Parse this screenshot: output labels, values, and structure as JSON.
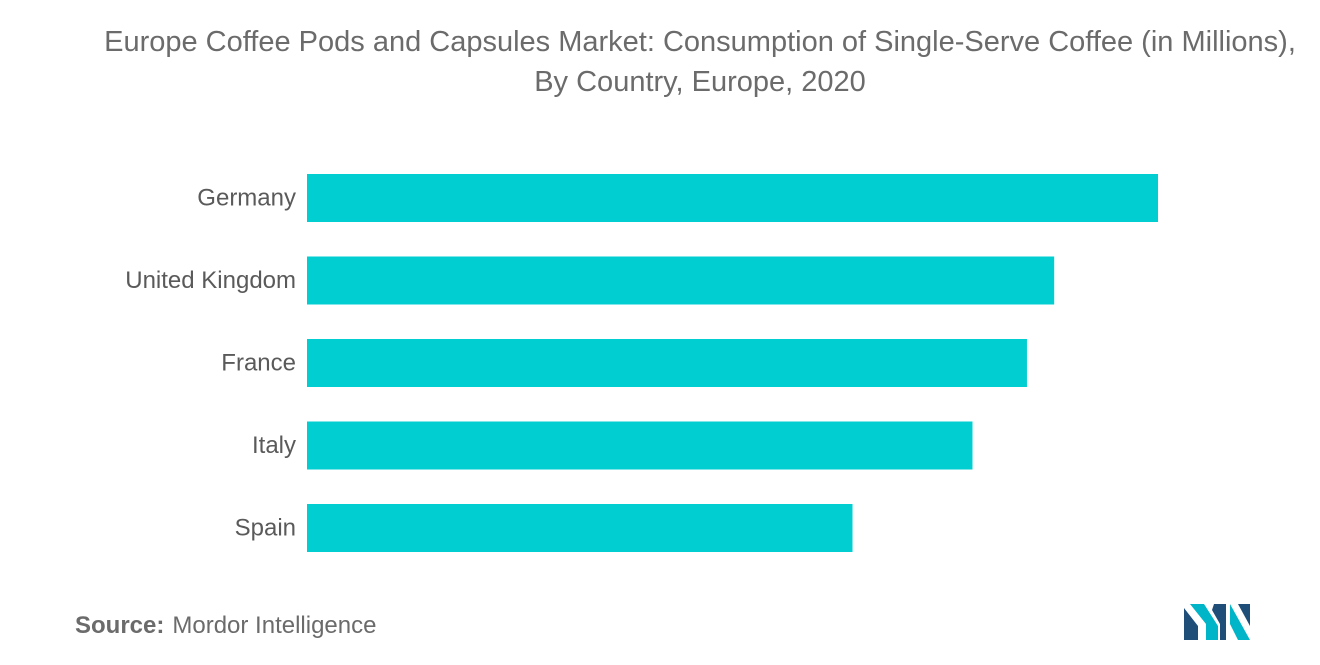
{
  "title": "Europe Coffee Pods and Capsules Market: Consumption of Single-Serve Coffee (in Millions), By Country, Europe, 2020",
  "source": {
    "label": "Source:",
    "text": "Mordor Intelligence"
  },
  "colors": {
    "bar": "#00CED1",
    "logo_dark": "#1f4e79",
    "logo_light": "#00b5c8"
  },
  "chart_data": {
    "type": "bar",
    "orientation": "horizontal",
    "categories": [
      "Germany",
      "United Kingdom",
      "France",
      "Italy",
      "Spain"
    ],
    "values": [
      100,
      87.8,
      84.6,
      78.2,
      64.1
    ],
    "title": "Europe Coffee Pods and Capsules Market: Consumption of Single-Serve Coffee (in Millions), By Country, Europe, 2020",
    "xlabel": "",
    "ylabel": "",
    "xlim": [
      0,
      100
    ],
    "grid": false,
    "legend": "none",
    "data_labels": false
  }
}
